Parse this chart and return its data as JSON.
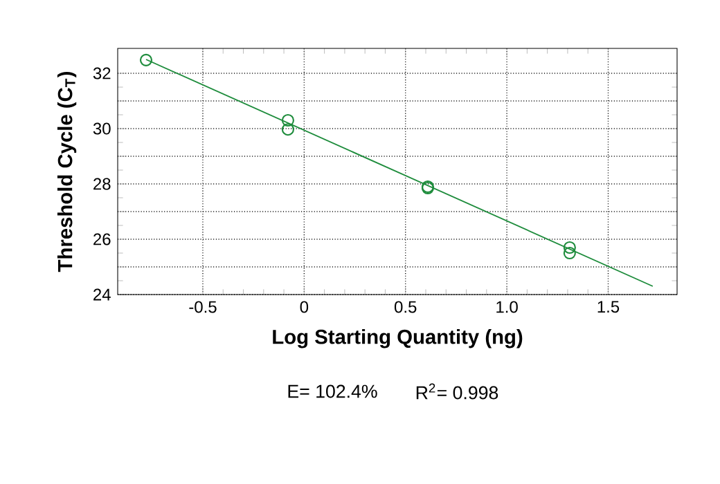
{
  "chart_data": {
    "type": "scatter",
    "xlabel": "Log Starting Quantity (ng)",
    "ylabel": "Threshold Cycle (C$_{T}$)",
    "xlim": [
      -0.92,
      1.84
    ],
    "ylim": [
      24,
      32.9
    ],
    "xticks": [
      -0.5,
      0,
      {
        "value": 0.5,
        "label": "0.5"
      },
      {
        "value": 1,
        "label": "1.0"
      },
      1.5
    ],
    "yticks": [
      24,
      {
        "value": 25,
        "label": null
      },
      26,
      {
        "value": 27,
        "label": null
      },
      28,
      {
        "value": 29,
        "label": null
      },
      30,
      {
        "value": 31,
        "label": null
      },
      32
    ],
    "grid": true,
    "annotations": [
      "E= 102.4%",
      "R$^{2}$= 0.998"
    ],
    "series": [
      {
        "marker": "circle",
        "color": "#1e8c3c",
        "x": [
          -0.78,
          -0.08,
          -0.08,
          0.61,
          0.61,
          1.31,
          1.31
        ],
        "values": [
          32.48,
          30.3,
          29.97,
          27.9,
          27.85,
          25.7,
          25.5
        ]
      },
      {
        "type": "line",
        "marker": "none",
        "line_style": "solid",
        "color": "#1e8c3c",
        "x": [
          -0.78,
          1.72
        ],
        "values": [
          32.5,
          24.3
        ]
      }
    ]
  }
}
